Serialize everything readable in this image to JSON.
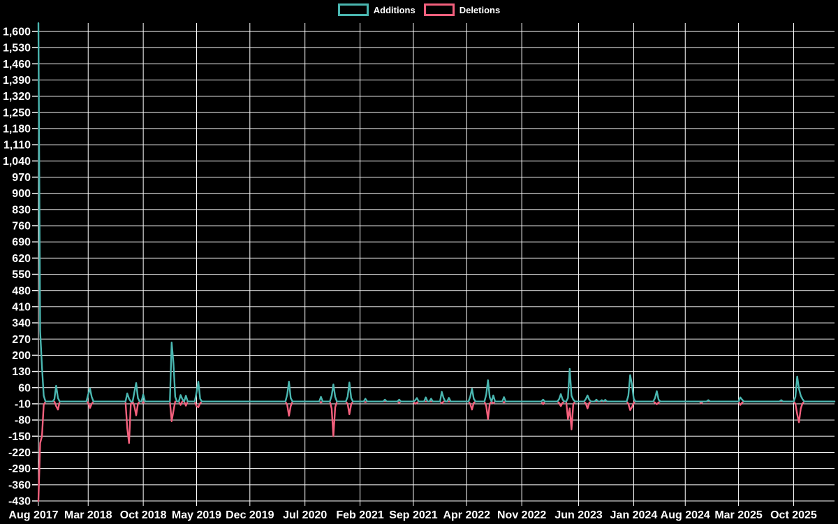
{
  "page": {
    "background": "#000000",
    "grid_color": "#ffffff",
    "text_color": "#ffffff"
  },
  "legend": {
    "items": [
      {
        "label": "Additions",
        "color": "#4ab6b0"
      },
      {
        "label": "Deletions",
        "color": "#f4607d"
      }
    ]
  },
  "chart_data": {
    "type": "line",
    "title": "",
    "xlabel": "",
    "ylabel": "",
    "legend_position": "top",
    "grid": true,
    "x_axis": {
      "unit": "week",
      "tick_labels": [
        "Aug 2017",
        "Mar 2018",
        "Oct 2018",
        "May 2019",
        "Dec 2019",
        "Jul 2020",
        "Feb 2021",
        "Sep 2021",
        "Apr 2022",
        "Nov 2022",
        "Jun 2023",
        "Jan 2024",
        "Aug 2024",
        "Mar 2025",
        "Oct 2025"
      ],
      "tick_weeks": [
        0,
        28,
        59,
        89,
        119,
        150,
        181,
        211,
        241,
        272,
        304,
        335,
        364,
        394,
        425
      ]
    },
    "y_axis": {
      "min": -430,
      "max": 1600,
      "step": 70
    },
    "n_points": 449,
    "series": [
      {
        "name": "Additions",
        "color": "#4ab6b0",
        "default_value": 0,
        "points_sparse": {
          "0": 1636,
          "1": 305,
          "2": 150,
          "3": 25,
          "9": 10,
          "10": 68,
          "11": 15,
          "28": 30,
          "29": 57,
          "30": 20,
          "50": 35,
          "51": 12,
          "54": 40,
          "55": 80,
          "56": 15,
          "59": 30,
          "75": 255,
          "76": 165,
          "77": 20,
          "80": 28,
          "81": 10,
          "83": 25,
          "89": 40,
          "90": 86,
          "91": 12,
          "140": 30,
          "141": 86,
          "142": 15,
          "159": 20,
          "165": 25,
          "166": 74,
          "167": 20,
          "174": 20,
          "175": 82,
          "176": 15,
          "184": 12,
          "195": 8,
          "203": 8,
          "212": 5,
          "213": 15,
          "218": 18,
          "221": 12,
          "227": 42,
          "228": 15,
          "231": 16,
          "243": 20,
          "244": 55,
          "245": 12,
          "252": 30,
          "253": 92,
          "254": 18,
          "256": 26,
          "262": 19,
          "284": 8,
          "293": 10,
          "294": 32,
          "295": 8,
          "298": 15,
          "299": 141,
          "300": 25,
          "301": 8,
          "308": 10,
          "309": 26,
          "310": 8,
          "314": 8,
          "317": 6,
          "319": 7,
          "332": 25,
          "333": 114,
          "334": 75,
          "335": 12,
          "347": 15,
          "348": 45,
          "349": 8,
          "377": 6,
          "395": 18,
          "396": 8,
          "418": 6,
          "426": 20,
          "427": 108,
          "428": 55,
          "429": 25,
          "430": 10
        }
      },
      {
        "name": "Deletions",
        "color": "#f4607d",
        "default_value": 0,
        "points_sparse": {
          "0": -430,
          "1": -180,
          "2": -150,
          "3": -15,
          "10": -20,
          "11": -35,
          "28": -5,
          "29": -28,
          "30": -10,
          "50": -115,
          "51": -180,
          "52": -10,
          "54": -20,
          "55": -60,
          "56": -10,
          "59": -6,
          "75": -85,
          "76": -40,
          "80": -15,
          "83": -18,
          "89": -20,
          "90": -25,
          "91": -8,
          "140": -15,
          "141": -62,
          "142": -20,
          "159": -4,
          "165": -30,
          "166": -150,
          "167": -25,
          "174": -10,
          "175": -55,
          "176": -12,
          "184": -3,
          "203": -6,
          "212": -10,
          "213": -5,
          "227": -8,
          "243": -10,
          "244": -35,
          "245": -6,
          "252": -20,
          "253": -76,
          "254": -10,
          "256": -8,
          "262": -4,
          "284": -12,
          "293": -6,
          "294": -20,
          "295": -5,
          "298": -76,
          "299": -30,
          "300": -121,
          "301": -12,
          "308": -8,
          "309": -30,
          "310": -6,
          "332": -10,
          "333": -37,
          "334": -25,
          "335": -6,
          "347": -5,
          "348": -12,
          "349": -4,
          "373": -8,
          "395": -15,
          "396": -5,
          "426": -10,
          "427": -55,
          "428": -90,
          "429": -30,
          "430": -8
        }
      }
    ]
  }
}
